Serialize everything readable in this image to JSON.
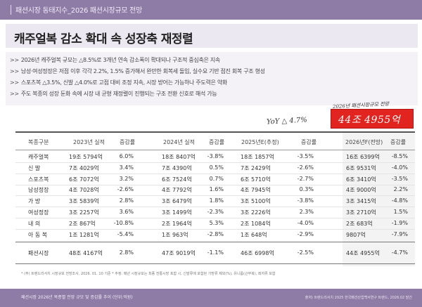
{
  "header": {
    "title": "패션시장 동태지수_2026 패션시장규모 전망"
  },
  "headline": "캐주얼복 감소 확대 속 성장축 재정렬",
  "bullets": [
    "2026년 캐주얼복 규모는 △8.5%로 3개년 연속 감소폭이 확대되나 구조적 중심축은 지속",
    "남성·여성정장은 저점 이후 각각 2.2%, 1.5% 증가해서 완만한 회복세 돌입, 실수요 기반 점진 회복 구조 형성",
    "스포츠복 △3.5%, 신발 △4.0%로 고점 대비 조정 지속, 시장 방어는 가능하나 주도력은 약화",
    "주도 복종의 성장 둔화 속에 시장 내 균형 재정렬이 진행되는 구조 전환 신호로 해석 가능"
  ],
  "annotation": {
    "label": "2026년 패션시장규모 전망",
    "yoy": "YoY △ 4.7%",
    "value": "44조 4955억"
  },
  "table": {
    "headers": [
      "복종구분",
      "2023년 실적",
      "증감률",
      "2024년 실적",
      "증감률",
      "2025년E(추정)",
      "증감률",
      "2026년F(전망)",
      "증감률"
    ],
    "rows": [
      [
        "캐주얼복",
        "19조 5794억",
        "6.0%",
        "18조 8407억",
        "-3.8%",
        "18조 1857억",
        "-3.5%",
        "16조 6399억",
        "-8.5%"
      ],
      [
        "신 발",
        "7조 4029억",
        "3.4%",
        "7조 4390억",
        "0.5%",
        "7조 2429억",
        "-2.6%",
        "6조 9531억",
        "-4.0%"
      ],
      [
        "스포츠복",
        "6조 7072억",
        "3.2%",
        "6조 7524억",
        "0.7%",
        "6조 5710억",
        "-2.7%",
        "6조 3410억",
        "-3.5%"
      ],
      [
        "남성정장",
        "4조 7028억",
        "-2.6%",
        "4조 7792억",
        "1.6%",
        "4조 7945억",
        "0.3%",
        "4조 9000억",
        "2.2%"
      ],
      [
        "가 방",
        "3조 5839억",
        "2.8%",
        "3조 6479억",
        "1.8%",
        "3조 5100억",
        "-3.8%",
        "3조 3415억",
        "-4.8%"
      ],
      [
        "여성정장",
        "3조 2257억",
        "3.6%",
        "3조 1499억",
        "-2.3%",
        "3조 2226억",
        "2.3%",
        "3조 2710억",
        "1.5%"
      ],
      [
        "내 의",
        "2조 867억",
        "-10.8%",
        "2조 1964억",
        "5.3%",
        "2조 1084억",
        "-4.0%",
        "2조 683억",
        "-1.9%"
      ],
      [
        "아 동 복",
        "1조 1281억",
        "-5.4%",
        "1조 963억",
        "-2.8%",
        "1조 648억",
        "-2.9%",
        "9807억",
        "-7.9%"
      ]
    ],
    "total": [
      "패션시장",
      "48조 4167억",
      "2.8%",
      "47조 9019억",
      "-1.1%",
      "46조 6998억",
      "-2.5%",
      "44조 4955억",
      "-4.7%"
    ]
  },
  "footnote": "* (주) 트렌드리서치 시장규모 전망조사, 2026. 01. 10 기준        * 추정: 매년 시장규모는 최종 전통시장 포함 시, 신발류에 포함된 가방류 제외(%), 유니폼(근무복), 레저류 포함",
  "footer": {
    "left": "패션시장 2026년 복종별 전망 규모 및 증감률 추이 (단위:억원)",
    "right": "출처) 트렌드리서치 2025 한국패션산업백서연구 트렌드, 2026.02 발간"
  },
  "colors": {
    "brand_purple": "#8e7ba6",
    "headline_bg": "#ece8f1",
    "highlight_red": "#e1241f"
  }
}
